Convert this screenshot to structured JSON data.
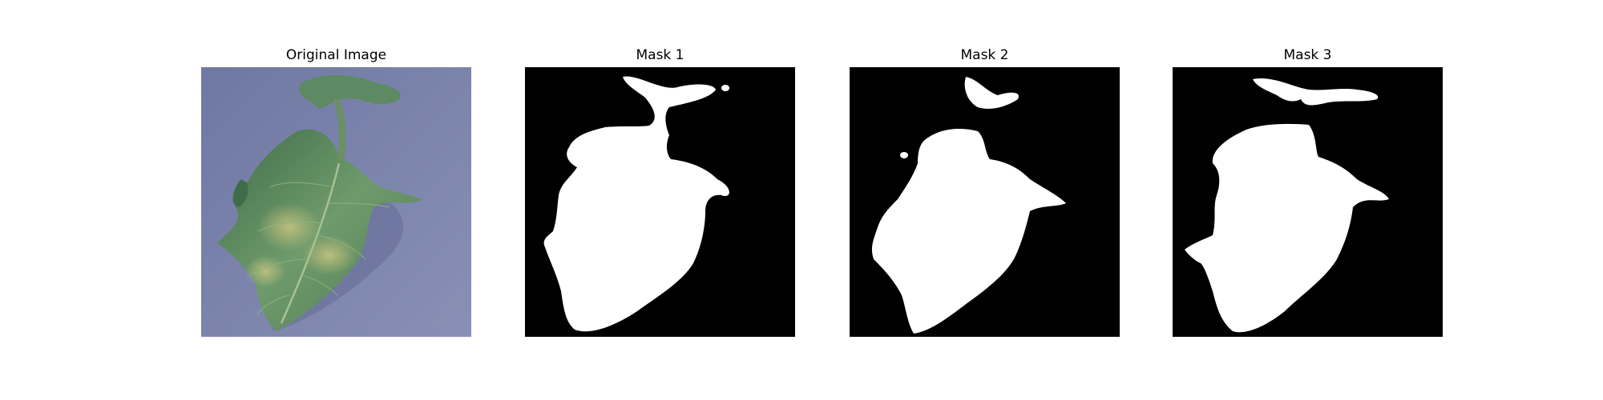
{
  "figure": {
    "panels": [
      {
        "title": "Original Image",
        "kind": "photo",
        "subject": "green leaf on blue-gray background"
      },
      {
        "title": "Mask 1",
        "kind": "mask"
      },
      {
        "title": "Mask 2",
        "kind": "mask"
      },
      {
        "title": "Mask 3",
        "kind": "mask"
      }
    ],
    "colors": {
      "background_photo": "#7d86ae",
      "leaf_dark": "#4e7a55",
      "leaf_mid": "#6f9a6c",
      "leaf_yellow": "#b3b978",
      "mask_bg": "#000000",
      "mask_fg": "#ffffff"
    }
  }
}
